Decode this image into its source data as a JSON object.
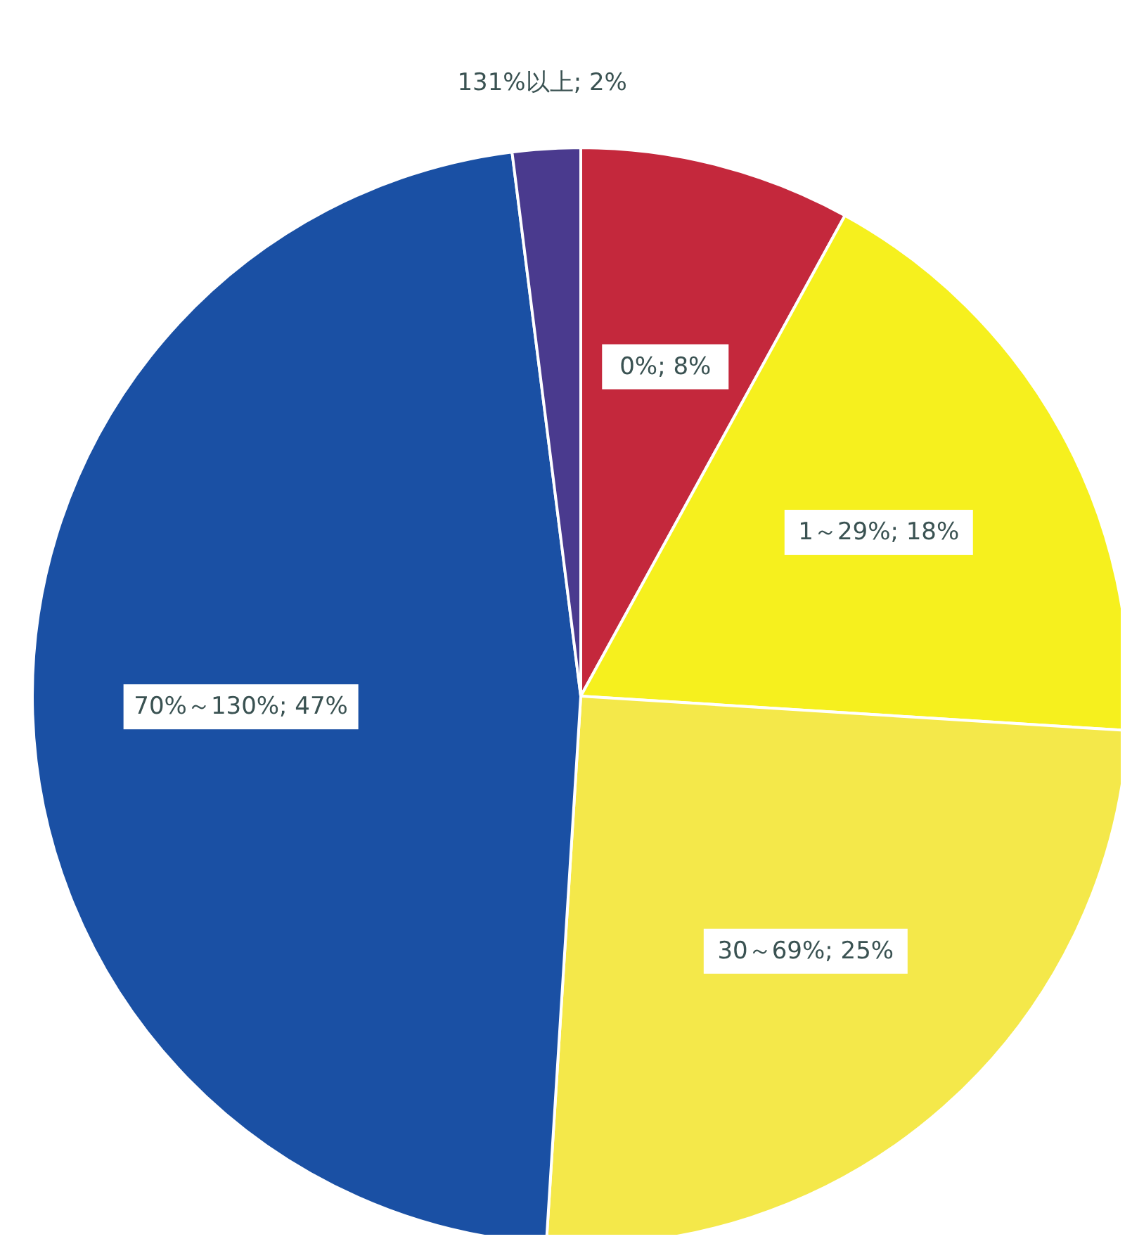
{
  "chart_data": {
    "type": "pie",
    "categories": [
      "0%",
      "1～29%",
      "30～69%",
      "70%～130%",
      "131%以上"
    ],
    "values": [
      8,
      18,
      25,
      47,
      2
    ],
    "value_labels": [
      "8%",
      "18%",
      "25%",
      "47%",
      "2%"
    ],
    "colors": [
      "#c4283c",
      "#f6f01e",
      "#f4e84a",
      "#1a50a4",
      "#4a3a8e"
    ]
  }
}
